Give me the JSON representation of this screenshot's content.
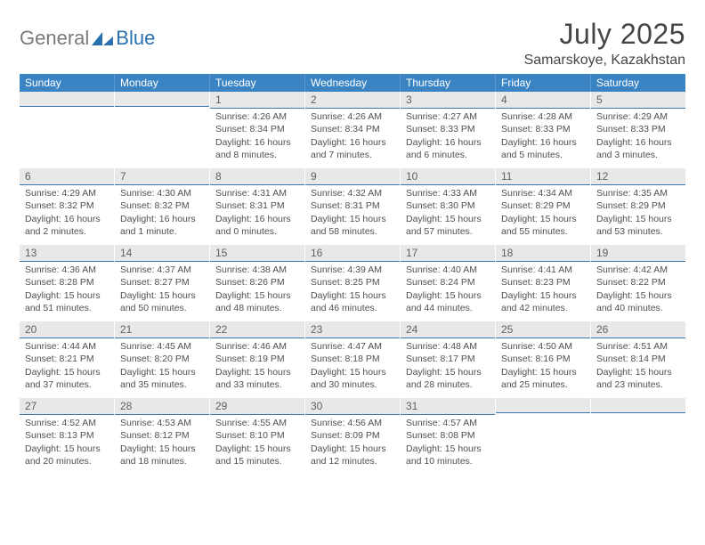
{
  "brand": {
    "general": "General",
    "blue": "Blue"
  },
  "title": "July 2025",
  "location": "Samarskoye, Kazakhstan",
  "colors": {
    "header_bg": "#3b84c4",
    "header_border": "#5a99cf",
    "daynum_bg": "#e8e8e8",
    "daynum_border": "#3b77a8",
    "text": "#404040"
  },
  "weekdays": [
    "Sunday",
    "Monday",
    "Tuesday",
    "Wednesday",
    "Thursday",
    "Friday",
    "Saturday"
  ],
  "weeks": [
    [
      null,
      null,
      {
        "n": "1",
        "sunrise": "4:26 AM",
        "sunset": "8:34 PM",
        "daylight": "16 hours and 8 minutes."
      },
      {
        "n": "2",
        "sunrise": "4:26 AM",
        "sunset": "8:34 PM",
        "daylight": "16 hours and 7 minutes."
      },
      {
        "n": "3",
        "sunrise": "4:27 AM",
        "sunset": "8:33 PM",
        "daylight": "16 hours and 6 minutes."
      },
      {
        "n": "4",
        "sunrise": "4:28 AM",
        "sunset": "8:33 PM",
        "daylight": "16 hours and 5 minutes."
      },
      {
        "n": "5",
        "sunrise": "4:29 AM",
        "sunset": "8:33 PM",
        "daylight": "16 hours and 3 minutes."
      }
    ],
    [
      {
        "n": "6",
        "sunrise": "4:29 AM",
        "sunset": "8:32 PM",
        "daylight": "16 hours and 2 minutes."
      },
      {
        "n": "7",
        "sunrise": "4:30 AM",
        "sunset": "8:32 PM",
        "daylight": "16 hours and 1 minute."
      },
      {
        "n": "8",
        "sunrise": "4:31 AM",
        "sunset": "8:31 PM",
        "daylight": "16 hours and 0 minutes."
      },
      {
        "n": "9",
        "sunrise": "4:32 AM",
        "sunset": "8:31 PM",
        "daylight": "15 hours and 58 minutes."
      },
      {
        "n": "10",
        "sunrise": "4:33 AM",
        "sunset": "8:30 PM",
        "daylight": "15 hours and 57 minutes."
      },
      {
        "n": "11",
        "sunrise": "4:34 AM",
        "sunset": "8:29 PM",
        "daylight": "15 hours and 55 minutes."
      },
      {
        "n": "12",
        "sunrise": "4:35 AM",
        "sunset": "8:29 PM",
        "daylight": "15 hours and 53 minutes."
      }
    ],
    [
      {
        "n": "13",
        "sunrise": "4:36 AM",
        "sunset": "8:28 PM",
        "daylight": "15 hours and 51 minutes."
      },
      {
        "n": "14",
        "sunrise": "4:37 AM",
        "sunset": "8:27 PM",
        "daylight": "15 hours and 50 minutes."
      },
      {
        "n": "15",
        "sunrise": "4:38 AM",
        "sunset": "8:26 PM",
        "daylight": "15 hours and 48 minutes."
      },
      {
        "n": "16",
        "sunrise": "4:39 AM",
        "sunset": "8:25 PM",
        "daylight": "15 hours and 46 minutes."
      },
      {
        "n": "17",
        "sunrise": "4:40 AM",
        "sunset": "8:24 PM",
        "daylight": "15 hours and 44 minutes."
      },
      {
        "n": "18",
        "sunrise": "4:41 AM",
        "sunset": "8:23 PM",
        "daylight": "15 hours and 42 minutes."
      },
      {
        "n": "19",
        "sunrise": "4:42 AM",
        "sunset": "8:22 PM",
        "daylight": "15 hours and 40 minutes."
      }
    ],
    [
      {
        "n": "20",
        "sunrise": "4:44 AM",
        "sunset": "8:21 PM",
        "daylight": "15 hours and 37 minutes."
      },
      {
        "n": "21",
        "sunrise": "4:45 AM",
        "sunset": "8:20 PM",
        "daylight": "15 hours and 35 minutes."
      },
      {
        "n": "22",
        "sunrise": "4:46 AM",
        "sunset": "8:19 PM",
        "daylight": "15 hours and 33 minutes."
      },
      {
        "n": "23",
        "sunrise": "4:47 AM",
        "sunset": "8:18 PM",
        "daylight": "15 hours and 30 minutes."
      },
      {
        "n": "24",
        "sunrise": "4:48 AM",
        "sunset": "8:17 PM",
        "daylight": "15 hours and 28 minutes."
      },
      {
        "n": "25",
        "sunrise": "4:50 AM",
        "sunset": "8:16 PM",
        "daylight": "15 hours and 25 minutes."
      },
      {
        "n": "26",
        "sunrise": "4:51 AM",
        "sunset": "8:14 PM",
        "daylight": "15 hours and 23 minutes."
      }
    ],
    [
      {
        "n": "27",
        "sunrise": "4:52 AM",
        "sunset": "8:13 PM",
        "daylight": "15 hours and 20 minutes."
      },
      {
        "n": "28",
        "sunrise": "4:53 AM",
        "sunset": "8:12 PM",
        "daylight": "15 hours and 18 minutes."
      },
      {
        "n": "29",
        "sunrise": "4:55 AM",
        "sunset": "8:10 PM",
        "daylight": "15 hours and 15 minutes."
      },
      {
        "n": "30",
        "sunrise": "4:56 AM",
        "sunset": "8:09 PM",
        "daylight": "15 hours and 12 minutes."
      },
      {
        "n": "31",
        "sunrise": "4:57 AM",
        "sunset": "8:08 PM",
        "daylight": "15 hours and 10 minutes."
      },
      null,
      null
    ]
  ],
  "labels": {
    "sunrise": "Sunrise:",
    "sunset": "Sunset:",
    "daylight": "Daylight:"
  }
}
